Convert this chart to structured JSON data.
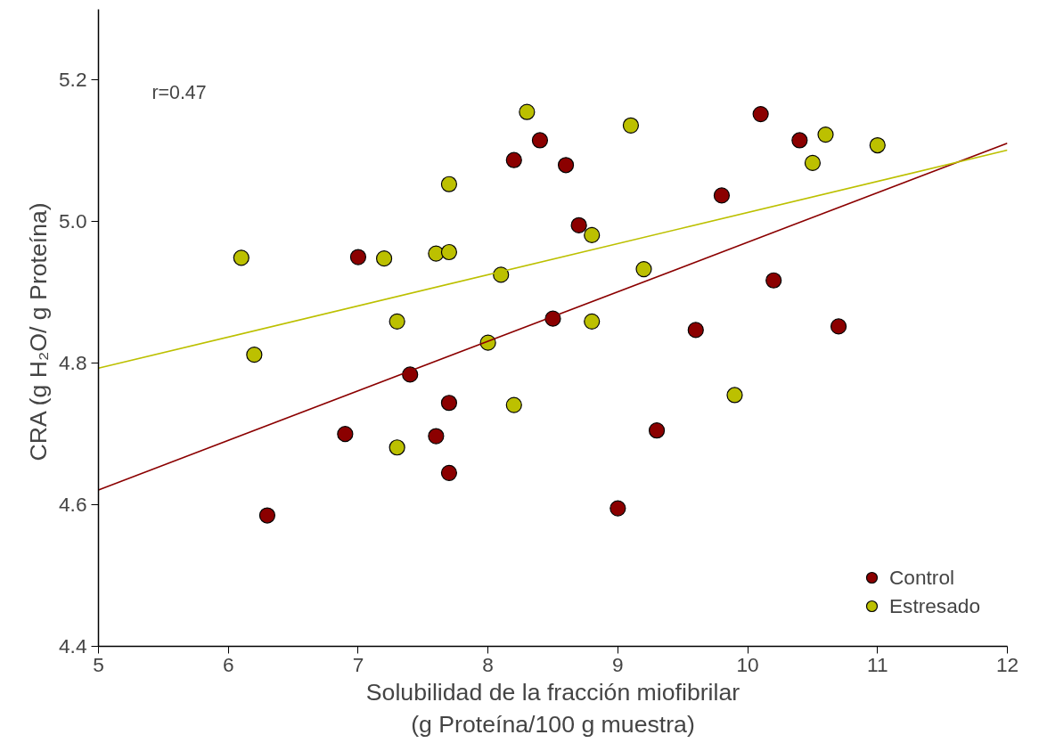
{
  "chart_data": {
    "type": "scatter",
    "xlabel": "Solubilidad de la fracción miofibrilar\n(g Proteína/100 g muestra)",
    "ylabel": "CRA  (g H₂O/ g Proteína)",
    "annotations": [
      "r=0.47"
    ],
    "xlim": [
      5,
      12
    ],
    "xticks": [
      5,
      6,
      7,
      8,
      9,
      10,
      11,
      12
    ],
    "ylim": [
      4.4,
      5.3
    ],
    "yticks": [
      4.4,
      4.6,
      4.8,
      {
        "value": 5.0,
        "label": "5.0"
      },
      5.2
    ],
    "grid": false,
    "legend": "bottom right",
    "marker": "circle",
    "series": [
      {
        "name": "Control",
        "color": "#8b0000",
        "x": [
          7.0,
          6.3,
          6.9,
          7.4,
          7.7,
          7.6,
          7.7,
          8.2,
          8.4,
          8.6,
          8.7,
          8.5,
          9.0,
          9.3,
          9.6,
          9.8,
          10.1,
          10.2,
          10.4,
          10.7
        ],
        "values": [
          4.95,
          4.585,
          4.7,
          4.784,
          4.744,
          4.697,
          4.645,
          5.087,
          5.115,
          5.08,
          4.995,
          4.863,
          4.595,
          4.705,
          4.847,
          5.037,
          5.152,
          4.917,
          5.115,
          4.852
        ]
      },
      {
        "name": "Estresado",
        "color": "#bcc000",
        "x": [
          6.1,
          6.2,
          7.2,
          7.3,
          7.3,
          7.6,
          7.7,
          7.7,
          8.0,
          8.1,
          8.2,
          8.3,
          8.8,
          8.8,
          9.1,
          9.2,
          9.9,
          10.5,
          10.6,
          11.0
        ],
        "values": [
          4.949,
          4.812,
          4.948,
          4.859,
          4.681,
          4.955,
          4.957,
          5.053,
          4.829,
          4.925,
          4.741,
          5.155,
          4.981,
          4.859,
          5.136,
          4.933,
          4.755,
          5.083,
          5.123,
          5.108
        ]
      },
      {
        "type": "line",
        "marker": "none",
        "color": "#8b0000",
        "x": [
          5,
          12
        ],
        "values": [
          4.621,
          5.111
        ]
      },
      {
        "type": "line",
        "marker": "none",
        "color": "#bcc000",
        "x": [
          5,
          12
        ],
        "values": [
          4.793,
          5.101
        ]
      }
    ]
  }
}
